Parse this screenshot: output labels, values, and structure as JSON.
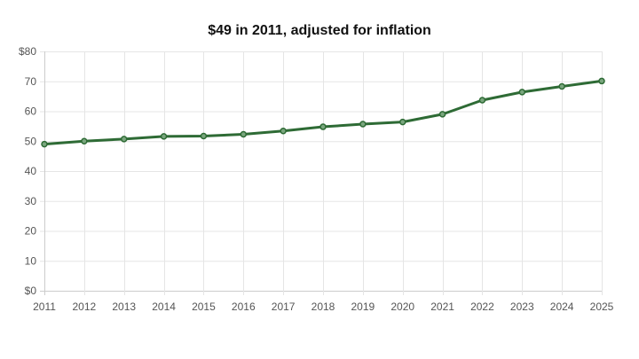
{
  "chart_data": {
    "type": "line",
    "title": "$49 in 2011, adjusted for inflation",
    "xlabel": "",
    "ylabel": "",
    "x": [
      "2011",
      "2012",
      "2013",
      "2014",
      "2015",
      "2016",
      "2017",
      "2018",
      "2019",
      "2020",
      "2021",
      "2022",
      "2023",
      "2024",
      "2025"
    ],
    "series": [
      {
        "values": [
          49.0,
          50.0,
          50.7,
          51.6,
          51.7,
          52.3,
          53.4,
          54.8,
          55.7,
          56.4,
          59.0,
          63.7,
          66.4,
          68.3,
          70.1
        ]
      }
    ],
    "ylim": [
      0,
      80
    ],
    "yticks": [
      0,
      10,
      20,
      30,
      40,
      50,
      60,
      70,
      80
    ],
    "ytick_labels": [
      "$0",
      "10",
      "20",
      "30",
      "40",
      "50",
      "60",
      "70",
      "$80"
    ],
    "grid": true,
    "colors": {
      "line": "#2e6b35",
      "marker_fill": "#7aa67e",
      "marker_stroke": "#2e6b35",
      "grid": "#e5e5e5",
      "axis": "#cccccc"
    }
  }
}
